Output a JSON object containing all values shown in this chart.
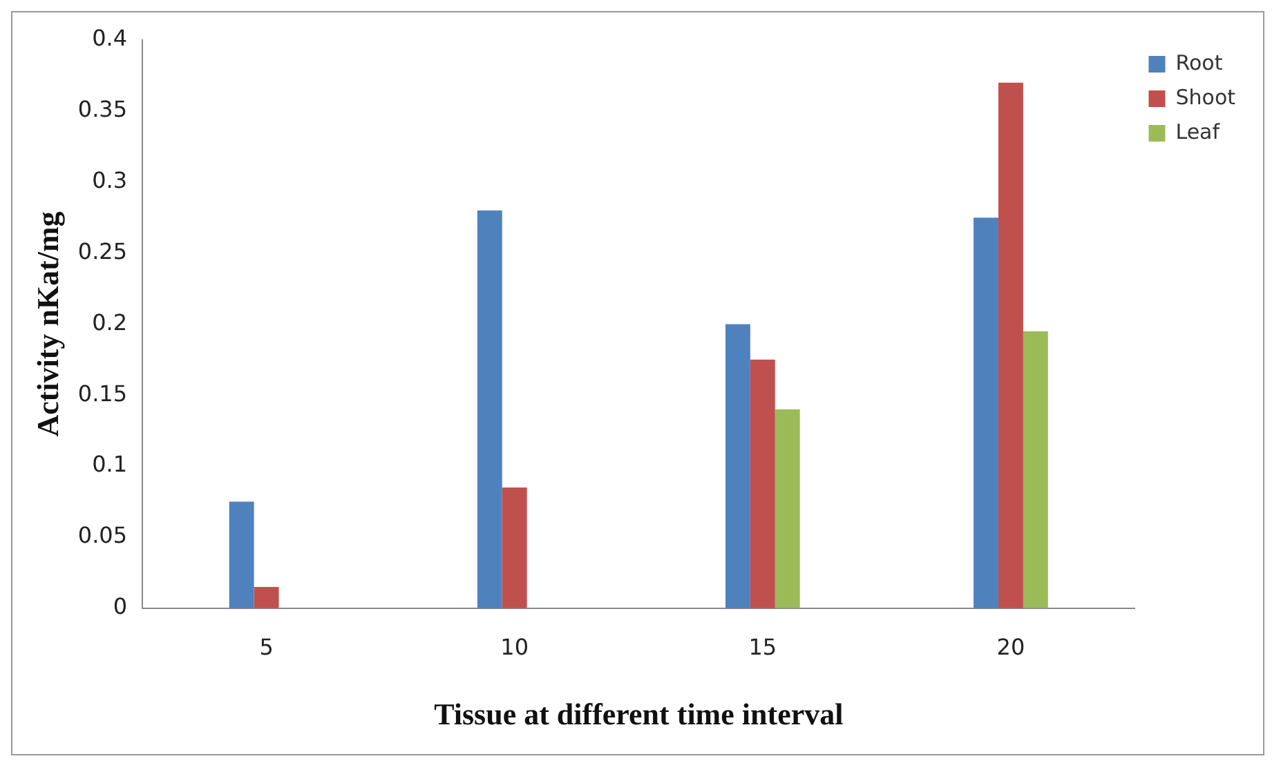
{
  "chart_data": {
    "type": "bar",
    "xlabel": "Tissue at different time interval",
    "ylabel": "Activity nKat/mg",
    "categories": [
      "5",
      "10",
      "15",
      "20"
    ],
    "series": [
      {
        "name": "Root",
        "color": "#4f81bd",
        "values": [
          0.075,
          0.28,
          0.2,
          0.275
        ]
      },
      {
        "name": "Shoot",
        "color": "#c0504d",
        "values": [
          0.015,
          0.085,
          0.175,
          0.37
        ]
      },
      {
        "name": "Leaf",
        "color": "#9bbb59",
        "values": [
          0,
          0,
          0.14,
          0.195
        ]
      }
    ],
    "ylim": [
      0,
      0.4
    ],
    "yticks": [
      0,
      0.05,
      0.1,
      0.15,
      0.2,
      0.25,
      0.3,
      0.35,
      0.4
    ],
    "grid": false,
    "legend": "top right"
  }
}
